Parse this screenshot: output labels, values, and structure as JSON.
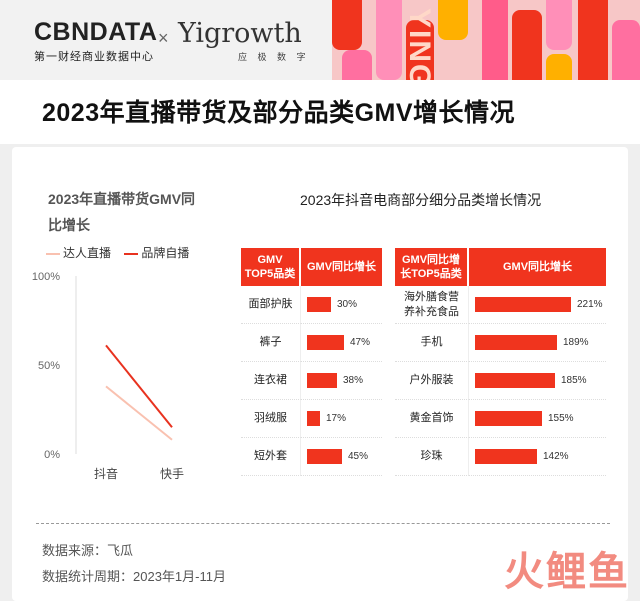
{
  "header": {
    "brand_left": "CBNDATA",
    "brand_left_sub": "第一财经商业数据中心",
    "cross": "×",
    "brand_right": "Yigrowth",
    "brand_right_sub": "应 极 数 字",
    "deco_text": "YING"
  },
  "title": "2023年直播带货及部分品类GMV增长情况",
  "left_chart_title": "2023年直播带货GMV同比增长",
  "right_chart_title": "2023年抖音电商部分细分品类增长情况",
  "footer": {
    "source": "数据来源：飞瓜",
    "period": "数据统计周期：2023年1月-11月",
    "watermark": "火鲤鱼"
  },
  "colors": {
    "accent": "#f0341e",
    "light_line": "#f9c1b0",
    "dark_line": "#e8321f"
  },
  "chart_data": [
    {
      "type": "line",
      "title": "2023年直播带货GMV同比增长",
      "categories": [
        "抖音",
        "快手"
      ],
      "y_ticks": [
        "100%",
        "50%",
        "0%"
      ],
      "ylim": [
        0,
        100
      ],
      "legend": "top",
      "series": [
        {
          "name": "达人直播",
          "values": [
            38,
            8
          ]
        },
        {
          "name": "品牌自播",
          "values": [
            61,
            15
          ]
        }
      ]
    },
    {
      "type": "bar",
      "columns": [
        "GMV TOP5品类",
        "GMV同比增长"
      ],
      "categories": [
        "面部护肤",
        "裤子",
        "连衣裙",
        "羽绒服",
        "短外套"
      ],
      "values": [
        30,
        47,
        38,
        17,
        45
      ],
      "labels": [
        "30%",
        "47%",
        "38%",
        "17%",
        "45%"
      ]
    },
    {
      "type": "bar",
      "columns": [
        "GMV同比增长TOP5品类",
        "GMV同比增长"
      ],
      "categories": [
        "海外膳食营养补充食品",
        "手机",
        "户外服装",
        "黄金首饰",
        "珍珠"
      ],
      "values": [
        221,
        189,
        185,
        155,
        142
      ],
      "labels": [
        "221%",
        "189%",
        "185%",
        "155%",
        "142%"
      ]
    }
  ]
}
